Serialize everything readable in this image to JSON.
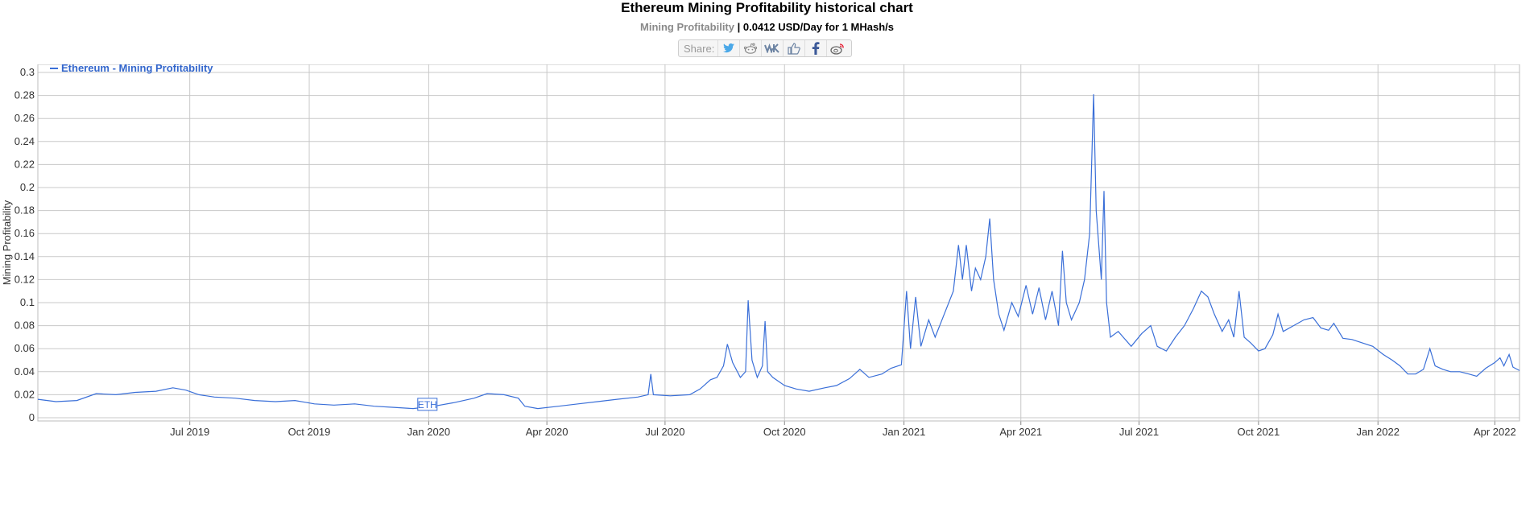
{
  "header": {
    "title": "Ethereum Mining Profitability historical chart",
    "subtitle_label": "Mining Profitability",
    "subtitle_value": " | 0.0412 USD/Day for 1 MHash/s",
    "share_label": "Share:"
  },
  "share_icons": [
    "twitter-icon",
    "reddit-icon",
    "vk-icon",
    "like-icon",
    "facebook-icon",
    "weibo-icon"
  ],
  "colors": {
    "line": "#3a6fd8",
    "grid": "#c8c8c8",
    "legend_text": "#3366cc"
  },
  "chart_data": {
    "type": "line",
    "title": "Ethereum Mining Profitability historical chart",
    "ylabel": "Mining Profitability",
    "xlabel": "",
    "ylim": [
      0,
      0.3
    ],
    "xlim": [
      "2019-03-06",
      "2022-04-20"
    ],
    "yticks": [
      "0",
      "0.02",
      "0.04",
      "0.06",
      "0.08",
      "0.1",
      "0.12",
      "0.14",
      "0.16",
      "0.18",
      "0.2",
      "0.22",
      "0.24",
      "0.26",
      "0.28",
      "0.3"
    ],
    "xticks": [
      {
        "label": "Jul 2019",
        "date": "2019-07-01"
      },
      {
        "label": "Oct 2019",
        "date": "2019-10-01"
      },
      {
        "label": "Jan 2020",
        "date": "2020-01-01"
      },
      {
        "label": "Apr 2020",
        "date": "2020-04-01"
      },
      {
        "label": "Jul 2020",
        "date": "2020-07-01"
      },
      {
        "label": "Oct 2020",
        "date": "2020-10-01"
      },
      {
        "label": "Jan 2021",
        "date": "2021-01-01"
      },
      {
        "label": "Apr 2021",
        "date": "2021-04-01"
      },
      {
        "label": "Jul 2021",
        "date": "2021-07-01"
      },
      {
        "label": "Oct 2021",
        "date": "2021-10-01"
      },
      {
        "label": "Jan 2022",
        "date": "2022-01-01"
      },
      {
        "label": "Apr 2022",
        "date": "2022-04-01"
      }
    ],
    "grid": true,
    "legend": "top-left",
    "annotations": [
      {
        "text": "ETH",
        "date": "2019-12-31",
        "value": 0.012
      }
    ],
    "series": [
      {
        "name": "Ethereum - Mining Profitability",
        "points": [
          [
            "2019-03-06",
            0.016
          ],
          [
            "2019-03-20",
            0.014
          ],
          [
            "2019-04-05",
            0.015
          ],
          [
            "2019-04-20",
            0.021
          ],
          [
            "2019-05-05",
            0.02
          ],
          [
            "2019-05-20",
            0.022
          ],
          [
            "2019-06-05",
            0.023
          ],
          [
            "2019-06-18",
            0.026
          ],
          [
            "2019-06-28",
            0.024
          ],
          [
            "2019-07-08",
            0.02
          ],
          [
            "2019-07-20",
            0.018
          ],
          [
            "2019-08-05",
            0.017
          ],
          [
            "2019-08-20",
            0.015
          ],
          [
            "2019-09-05",
            0.014
          ],
          [
            "2019-09-20",
            0.015
          ],
          [
            "2019-10-05",
            0.012
          ],
          [
            "2019-10-20",
            0.011
          ],
          [
            "2019-11-05",
            0.012
          ],
          [
            "2019-11-20",
            0.01
          ],
          [
            "2019-12-05",
            0.009
          ],
          [
            "2019-12-20",
            0.008
          ],
          [
            "2020-01-05",
            0.01
          ],
          [
            "2020-01-20",
            0.013
          ],
          [
            "2020-02-05",
            0.017
          ],
          [
            "2020-02-15",
            0.021
          ],
          [
            "2020-02-28",
            0.02
          ],
          [
            "2020-03-10",
            0.017
          ],
          [
            "2020-03-15",
            0.01
          ],
          [
            "2020-03-25",
            0.008
          ],
          [
            "2020-04-10",
            0.01
          ],
          [
            "2020-04-25",
            0.012
          ],
          [
            "2020-05-10",
            0.014
          ],
          [
            "2020-05-25",
            0.016
          ],
          [
            "2020-06-10",
            0.018
          ],
          [
            "2020-06-18",
            0.02
          ],
          [
            "2020-06-20",
            0.038
          ],
          [
            "2020-06-22",
            0.02
          ],
          [
            "2020-07-05",
            0.019
          ],
          [
            "2020-07-20",
            0.02
          ],
          [
            "2020-07-28",
            0.025
          ],
          [
            "2020-08-05",
            0.033
          ],
          [
            "2020-08-10",
            0.035
          ],
          [
            "2020-08-15",
            0.045
          ],
          [
            "2020-08-18",
            0.064
          ],
          [
            "2020-08-22",
            0.048
          ],
          [
            "2020-08-28",
            0.035
          ],
          [
            "2020-09-01",
            0.04
          ],
          [
            "2020-09-03",
            0.102
          ],
          [
            "2020-09-06",
            0.05
          ],
          [
            "2020-09-10",
            0.035
          ],
          [
            "2020-09-14",
            0.045
          ],
          [
            "2020-09-16",
            0.084
          ],
          [
            "2020-09-18",
            0.04
          ],
          [
            "2020-09-22",
            0.035
          ],
          [
            "2020-10-01",
            0.028
          ],
          [
            "2020-10-10",
            0.025
          ],
          [
            "2020-10-20",
            0.023
          ],
          [
            "2020-11-01",
            0.026
          ],
          [
            "2020-11-10",
            0.028
          ],
          [
            "2020-11-20",
            0.034
          ],
          [
            "2020-11-28",
            0.042
          ],
          [
            "2020-12-05",
            0.035
          ],
          [
            "2020-12-15",
            0.038
          ],
          [
            "2020-12-22",
            0.043
          ],
          [
            "2020-12-30",
            0.046
          ],
          [
            "2021-01-03",
            0.11
          ],
          [
            "2021-01-06",
            0.06
          ],
          [
            "2021-01-10",
            0.105
          ],
          [
            "2021-01-14",
            0.062
          ],
          [
            "2021-01-20",
            0.085
          ],
          [
            "2021-01-25",
            0.07
          ],
          [
            "2021-02-01",
            0.09
          ],
          [
            "2021-02-08",
            0.11
          ],
          [
            "2021-02-12",
            0.15
          ],
          [
            "2021-02-15",
            0.12
          ],
          [
            "2021-02-18",
            0.15
          ],
          [
            "2021-02-22",
            0.11
          ],
          [
            "2021-02-25",
            0.13
          ],
          [
            "2021-03-01",
            0.12
          ],
          [
            "2021-03-05",
            0.14
          ],
          [
            "2021-03-08",
            0.173
          ],
          [
            "2021-03-11",
            0.12
          ],
          [
            "2021-03-15",
            0.09
          ],
          [
            "2021-03-19",
            0.076
          ],
          [
            "2021-03-25",
            0.1
          ],
          [
            "2021-03-30",
            0.088
          ],
          [
            "2021-04-05",
            0.115
          ],
          [
            "2021-04-10",
            0.09
          ],
          [
            "2021-04-15",
            0.113
          ],
          [
            "2021-04-20",
            0.085
          ],
          [
            "2021-04-25",
            0.11
          ],
          [
            "2021-04-30",
            0.08
          ],
          [
            "2021-05-03",
            0.145
          ],
          [
            "2021-05-06",
            0.1
          ],
          [
            "2021-05-10",
            0.085
          ],
          [
            "2021-05-16",
            0.1
          ],
          [
            "2021-05-20",
            0.12
          ],
          [
            "2021-05-24",
            0.16
          ],
          [
            "2021-05-27",
            0.281
          ],
          [
            "2021-05-29",
            0.18
          ],
          [
            "2021-06-02",
            0.12
          ],
          [
            "2021-06-04",
            0.197
          ],
          [
            "2021-06-06",
            0.1
          ],
          [
            "2021-06-09",
            0.07
          ],
          [
            "2021-06-15",
            0.075
          ],
          [
            "2021-06-25",
            0.062
          ],
          [
            "2021-07-03",
            0.073
          ],
          [
            "2021-07-10",
            0.08
          ],
          [
            "2021-07-15",
            0.062
          ],
          [
            "2021-07-22",
            0.058
          ],
          [
            "2021-07-29",
            0.07
          ],
          [
            "2021-08-05",
            0.08
          ],
          [
            "2021-08-12",
            0.095
          ],
          [
            "2021-08-18",
            0.11
          ],
          [
            "2021-08-23",
            0.105
          ],
          [
            "2021-08-28",
            0.09
          ],
          [
            "2021-09-03",
            0.075
          ],
          [
            "2021-09-08",
            0.085
          ],
          [
            "2021-09-12",
            0.07
          ],
          [
            "2021-09-16",
            0.11
          ],
          [
            "2021-09-20",
            0.07
          ],
          [
            "2021-09-25",
            0.065
          ],
          [
            "2021-10-01",
            0.058
          ],
          [
            "2021-10-06",
            0.06
          ],
          [
            "2021-10-12",
            0.072
          ],
          [
            "2021-10-16",
            0.09
          ],
          [
            "2021-10-20",
            0.075
          ],
          [
            "2021-10-28",
            0.08
          ],
          [
            "2021-11-05",
            0.085
          ],
          [
            "2021-11-12",
            0.087
          ],
          [
            "2021-11-18",
            0.078
          ],
          [
            "2021-11-24",
            0.076
          ],
          [
            "2021-11-28",
            0.082
          ],
          [
            "2021-12-05",
            0.069
          ],
          [
            "2021-12-12",
            0.068
          ],
          [
            "2021-12-20",
            0.065
          ],
          [
            "2021-12-28",
            0.062
          ],
          [
            "2022-01-05",
            0.055
          ],
          [
            "2022-01-12",
            0.05
          ],
          [
            "2022-01-18",
            0.045
          ],
          [
            "2022-01-24",
            0.038
          ],
          [
            "2022-01-30",
            0.038
          ],
          [
            "2022-02-05",
            0.042
          ],
          [
            "2022-02-10",
            0.06
          ],
          [
            "2022-02-14",
            0.045
          ],
          [
            "2022-02-20",
            0.042
          ],
          [
            "2022-02-26",
            0.04
          ],
          [
            "2022-03-05",
            0.04
          ],
          [
            "2022-03-12",
            0.038
          ],
          [
            "2022-03-18",
            0.036
          ],
          [
            "2022-03-25",
            0.043
          ],
          [
            "2022-04-01",
            0.048
          ],
          [
            "2022-04-05",
            0.052
          ],
          [
            "2022-04-08",
            0.045
          ],
          [
            "2022-04-12",
            0.055
          ],
          [
            "2022-04-15",
            0.044
          ],
          [
            "2022-04-20",
            0.041
          ]
        ]
      }
    ]
  }
}
